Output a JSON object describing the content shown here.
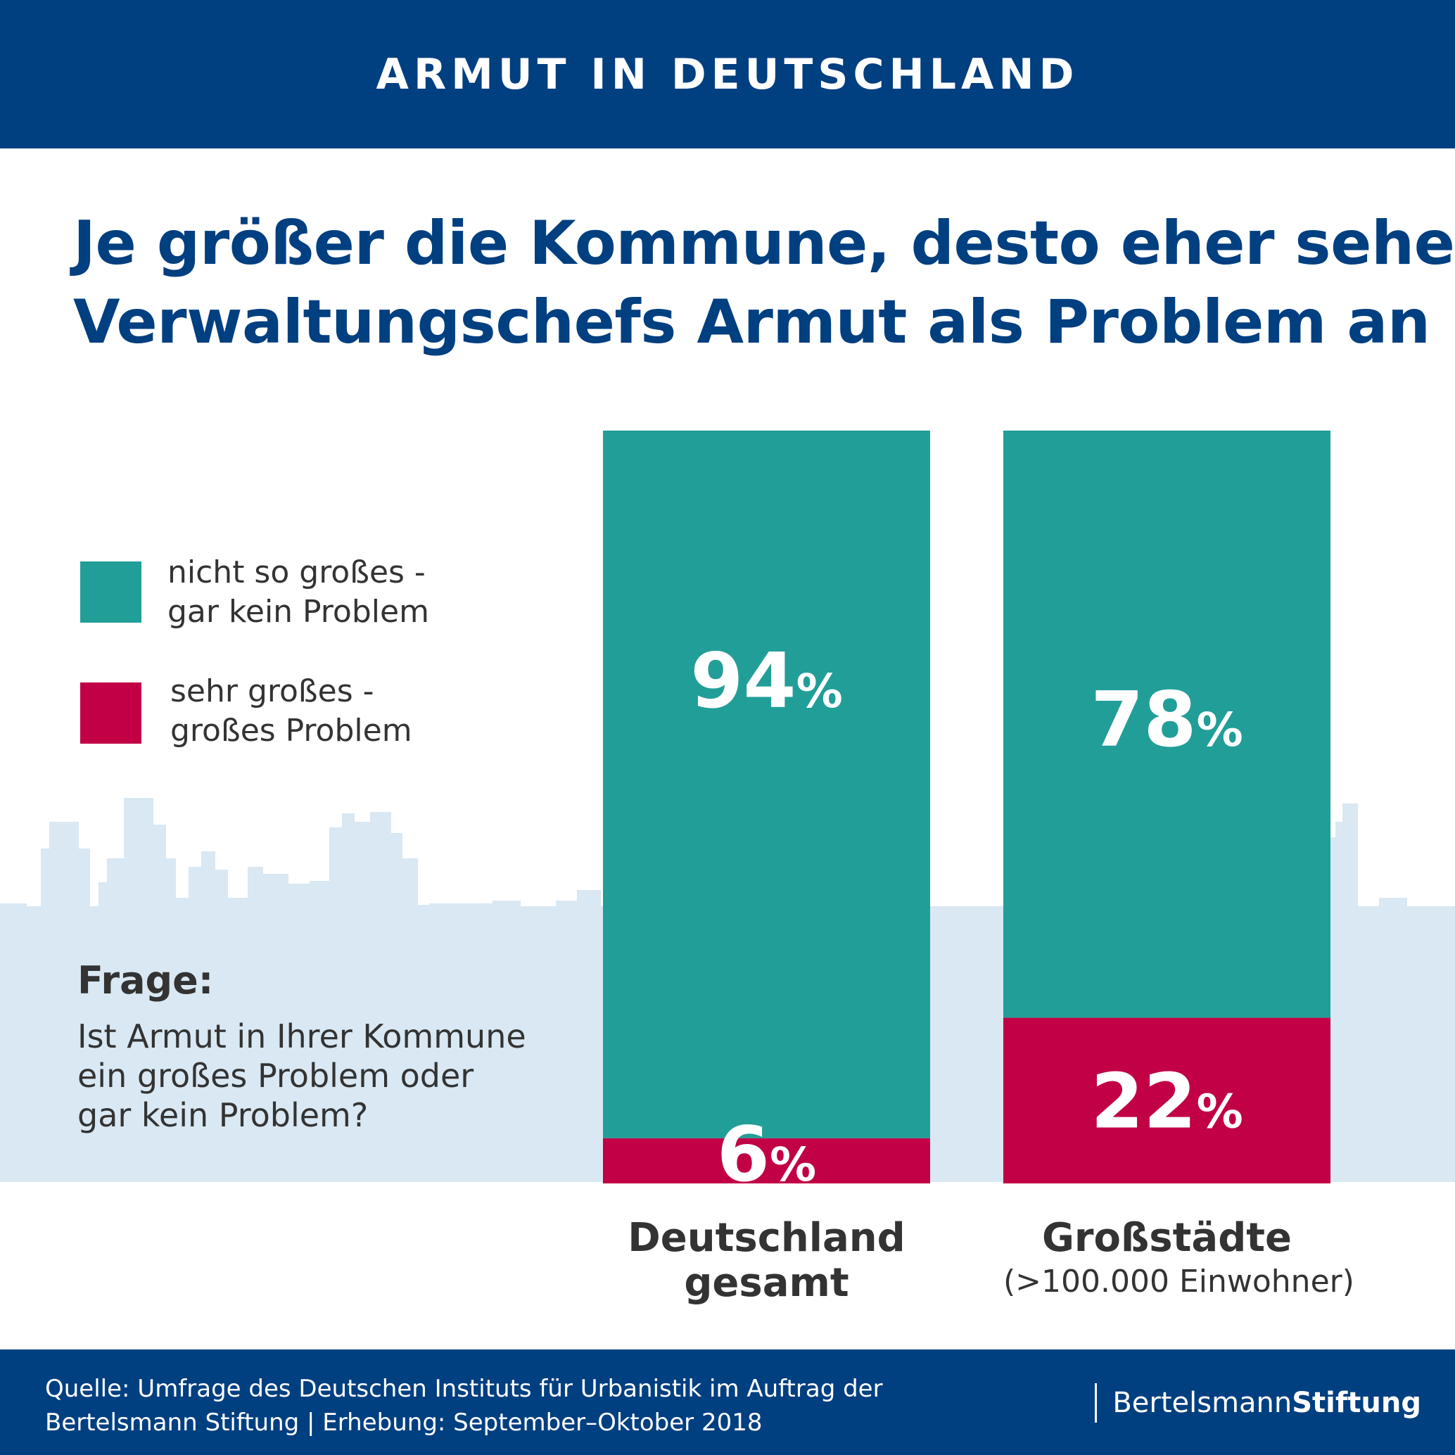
{
  "header": {
    "title": "ARMUT IN DEUTSCHLAND"
  },
  "headline": {
    "line1": "Je größer die Kommune, desto eher sehen",
    "line2": "Verwaltungschefs Armut als Problem an"
  },
  "legend": [
    {
      "line1": "nicht so großes -",
      "line2": "gar kein Problem"
    },
    {
      "line1": "sehr großes -",
      "line2": "großes Problem"
    }
  ],
  "question": {
    "label": "Frage:",
    "line1": "Ist Armut in Ihrer Kommune",
    "line2": "ein großes Problem oder",
    "line3": "gar kein Problem?"
  },
  "chart_data": {
    "type": "bar",
    "stacked": true,
    "categories": [
      "Deutschland gesamt",
      "Großstädte (>100.000 Einwohner)"
    ],
    "category_labels": [
      {
        "main1": "Deutschland",
        "main2": "gesamt",
        "sub": ""
      },
      {
        "main1": "Großstädte",
        "main2": "",
        "sub": "(>100.000 Einwohner)"
      }
    ],
    "series": [
      {
        "name": "nicht so großes - gar kein Problem",
        "values": [
          94,
          78
        ],
        "color": "#229e98"
      },
      {
        "name": "sehr großes - großes Problem",
        "values": [
          6,
          22
        ],
        "color": "#c10046"
      }
    ],
    "value_suffix": "%",
    "ylim": [
      0,
      100
    ],
    "legend_position": "left"
  },
  "footer": {
    "source_line1": "Quelle: Umfrage des Deutschen Instituts für Urbanistik im Auftrag der",
    "source_line2": "Bertelsmann Stiftung | Erhebung: September–Oktober 2018",
    "brand_part1": "Bertelsmann",
    "brand_part2": "Stiftung"
  },
  "colors": {
    "primary": "#003f80",
    "teal": "#229e98",
    "crimson": "#c10046",
    "skyline": "#d9e8f2"
  }
}
